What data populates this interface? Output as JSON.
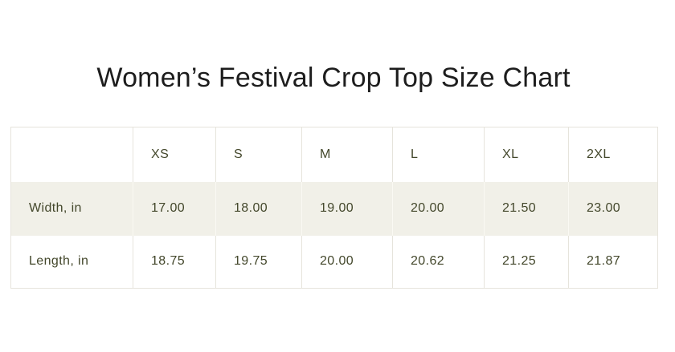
{
  "title": "Women’s Festival Crop Top Size Chart",
  "chart_data": {
    "type": "table",
    "title": "Women’s Festival Crop Top Size Chart",
    "corner_label": "",
    "columns": [
      "XS",
      "S",
      "M",
      "L",
      "XL",
      "2XL"
    ],
    "rows": [
      {
        "label": "Width, in",
        "values": [
          "17.00",
          "18.00",
          "19.00",
          "20.00",
          "21.50",
          "23.00"
        ]
      },
      {
        "label": "Length, in",
        "values": [
          "18.75",
          "19.75",
          "20.00",
          "20.62",
          "21.25",
          "21.87"
        ]
      }
    ],
    "layout_hints": {
      "striped_row": "Width, in",
      "header_background": "#ffffff",
      "grid": "vertical-only"
    }
  },
  "colors": {
    "title_text": "#1d1d1d",
    "table_text": "#43472b",
    "stripe_background": "#f1f0e8",
    "border": "#e6e4dc",
    "page_background": "#ffffff"
  }
}
